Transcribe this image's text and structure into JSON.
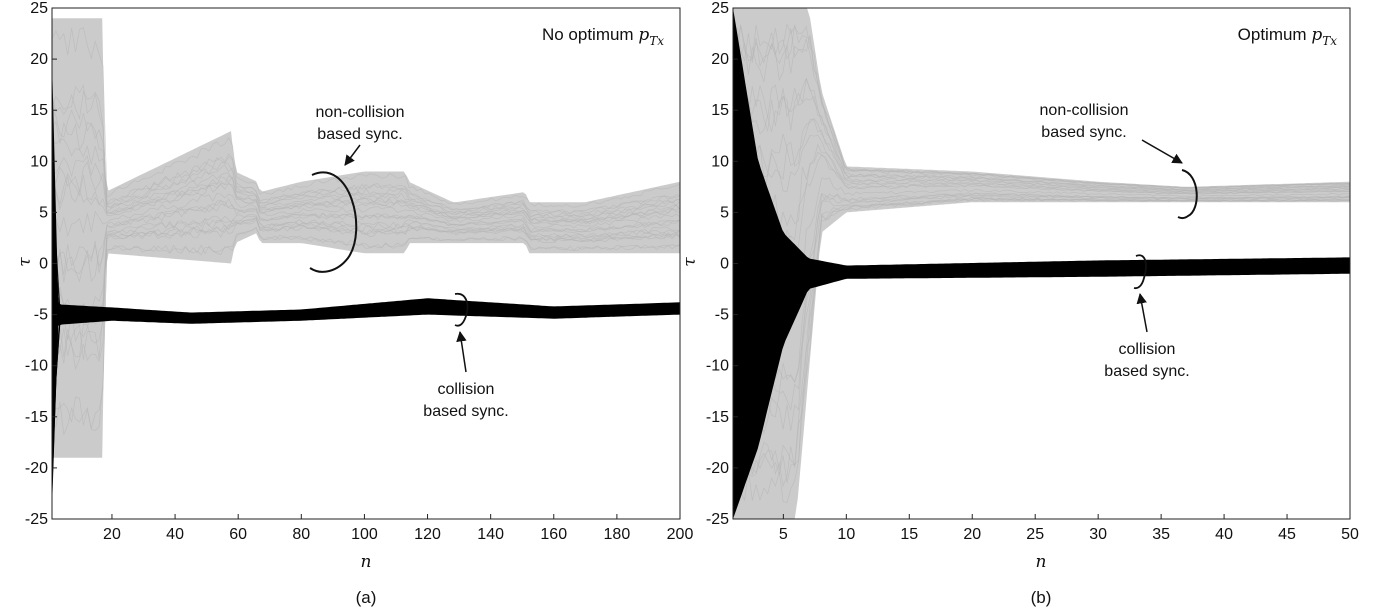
{
  "chart_data": [
    {
      "type": "line",
      "panel_label": "(a)",
      "corner_label": "No optimum p_Tx",
      "corner_label_main": "No optimum ",
      "corner_label_math": "p",
      "corner_label_sub": "Tx",
      "xlabel": "n",
      "ylabel": "τ",
      "xlim": [
        1,
        200
      ],
      "ylim": [
        -25,
        25
      ],
      "xticks": [
        20,
        40,
        60,
        80,
        100,
        120,
        140,
        160,
        180,
        200
      ],
      "xtick_labels": [
        "20",
        "40",
        "60",
        "80",
        "100",
        "120",
        "140",
        "160",
        "180",
        "200"
      ],
      "yticks": [
        25,
        20,
        15,
        10,
        5,
        0,
        -5,
        -10,
        -15,
        -20,
        -25
      ],
      "ytick_labels": [
        "25",
        "20",
        "15",
        "10",
        "5",
        "0",
        "-5",
        "-10",
        "-15",
        "-20",
        "-25"
      ],
      "grid": false,
      "series": [
        {
          "label": "non-collision based sync.",
          "color": "#c8c8c8",
          "band_upper": [
            [
              1,
              24
            ],
            [
              17,
              24
            ],
            [
              18,
              7
            ],
            [
              58,
              13
            ],
            [
              59,
              9
            ],
            [
              66,
              8
            ],
            [
              67,
              7
            ],
            [
              80,
              8
            ],
            [
              100,
              9
            ],
            [
              113,
              9
            ],
            [
              114,
              8
            ],
            [
              128,
              6
            ],
            [
              129,
              6
            ],
            [
              151,
              7
            ],
            [
              152,
              6
            ],
            [
              170,
              6
            ],
            [
              200,
              8
            ]
          ],
          "band_lower": [
            [
              1,
              -19
            ],
            [
              17,
              -19
            ],
            [
              18,
              1
            ],
            [
              58,
              0
            ],
            [
              59,
              2
            ],
            [
              66,
              3
            ],
            [
              67,
              2
            ],
            [
              80,
              2
            ],
            [
              100,
              1
            ],
            [
              113,
              1
            ],
            [
              114,
              2
            ],
            [
              128,
              2
            ],
            [
              129,
              2
            ],
            [
              151,
              2
            ],
            [
              152,
              1
            ],
            [
              170,
              1
            ],
            [
              200,
              1
            ]
          ]
        },
        {
          "label": "collision based sync.",
          "color": "#000000",
          "band_upper": [
            [
              1,
              20
            ],
            [
              3,
              -4
            ],
            [
              20,
              -4.3
            ],
            [
              45,
              -4.8
            ],
            [
              80,
              -4.5
            ],
            [
              120,
              -3.4
            ],
            [
              160,
              -4.2
            ],
            [
              200,
              -3.8
            ]
          ],
          "band_lower": [
            [
              1,
              -24
            ],
            [
              3,
              -6
            ],
            [
              20,
              -5.6
            ],
            [
              45,
              -5.9
            ],
            [
              80,
              -5.6
            ],
            [
              120,
              -5.0
            ],
            [
              160,
              -5.4
            ],
            [
              200,
              -5.0
            ]
          ]
        }
      ],
      "annotations": [
        {
          "text_lines": [
            "non-collision",
            "based sync."
          ],
          "target": [
            95,
            3.5
          ]
        },
        {
          "text_lines": [
            "collision",
            "based sync."
          ],
          "target": [
            134,
            -4.6
          ]
        }
      ]
    },
    {
      "type": "line",
      "panel_label": "(b)",
      "corner_label": "Optimum p_Tx",
      "corner_label_main": "Optimum ",
      "corner_label_math": "p",
      "corner_label_sub": "Tx",
      "xlabel": "n",
      "ylabel": "τ",
      "xlim": [
        1,
        50
      ],
      "ylim": [
        -25,
        25
      ],
      "xticks": [
        5,
        10,
        15,
        20,
        25,
        30,
        35,
        40,
        45,
        50
      ],
      "xtick_labels": [
        "5",
        "10",
        "15",
        "20",
        "25",
        "30",
        "35",
        "40",
        "45",
        "50"
      ],
      "yticks": [
        25,
        20,
        15,
        10,
        5,
        0,
        -5,
        -10,
        -15,
        -20,
        -25
      ],
      "ytick_labels": [
        "25",
        "20",
        "15",
        "10",
        "5",
        "0",
        "-5",
        "-10",
        "-15",
        "-20",
        "-25"
      ],
      "grid": false,
      "series": [
        {
          "label": "non-collision based sync.",
          "color": "#c8c8c8",
          "band_upper": [
            [
              1,
              25
            ],
            [
              7,
              25
            ],
            [
              8,
              17
            ],
            [
              10,
              9.5
            ],
            [
              20,
              9
            ],
            [
              30,
              8
            ],
            [
              37,
              7.5
            ],
            [
              50,
              8
            ]
          ],
          "band_lower": [
            [
              1,
              -25
            ],
            [
              6,
              -25
            ],
            [
              8,
              3
            ],
            [
              10,
              5
            ],
            [
              20,
              6
            ],
            [
              30,
              6
            ],
            [
              37,
              6
            ],
            [
              50,
              6
            ]
          ]
        },
        {
          "label": "collision based sync.",
          "color": "#000000",
          "band_upper": [
            [
              1,
              25
            ],
            [
              3,
              10
            ],
            [
              5,
              3
            ],
            [
              7,
              0.5
            ],
            [
              10,
              -0.2
            ],
            [
              30,
              0.3
            ],
            [
              50,
              0.6
            ]
          ],
          "band_lower": [
            [
              1,
              -25
            ],
            [
              3,
              -18
            ],
            [
              5,
              -8
            ],
            [
              7,
              -2.5
            ],
            [
              10,
              -1.5
            ],
            [
              30,
              -1.3
            ],
            [
              50,
              -1.0
            ]
          ]
        }
      ],
      "annotations": [
        {
          "text_lines": [
            "non-collision",
            "based sync."
          ],
          "target": [
            37,
            7.2
          ]
        },
        {
          "text_lines": [
            "collision",
            "based sync."
          ],
          "target": [
            33,
            -0.5
          ]
        }
      ]
    }
  ]
}
